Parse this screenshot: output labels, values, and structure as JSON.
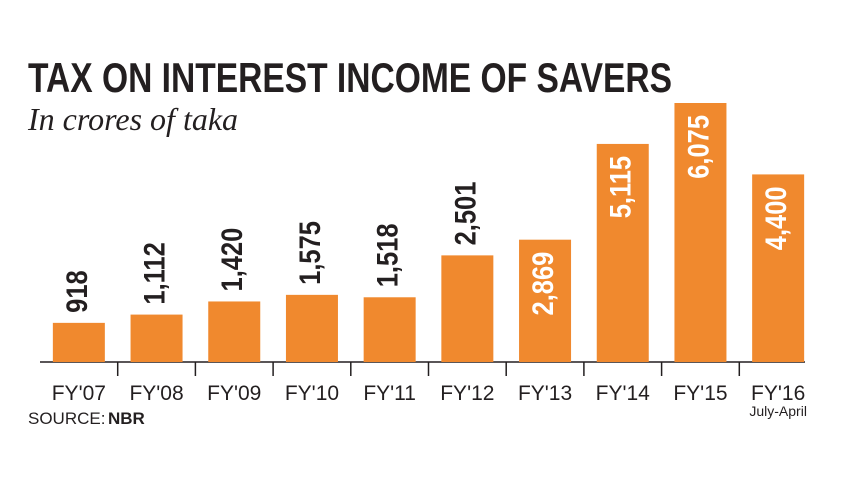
{
  "chart_data": {
    "type": "bar",
    "title": "TAX  ON INTEREST INCOME OF SAVERS",
    "subtitle": "In crores of taka",
    "categories": [
      "FY'07",
      "FY'08",
      "FY'09",
      "FY'10",
      "FY'11",
      "FY'12",
      "FY'13",
      "FY'14",
      "FY'15",
      "FY'16"
    ],
    "values": [
      918,
      1112,
      1420,
      1575,
      1518,
      2501,
      2869,
      5115,
      6075,
      4400
    ],
    "value_labels": [
      "918",
      "1,112",
      "1,420",
      "1,575",
      "1,518",
      "2,501",
      "2,869",
      "5,115",
      "6,075",
      "4,400"
    ],
    "annotations": [
      "July-April"
    ],
    "source_label": "SOURCE:",
    "source": "NBR",
    "color": "#f0892e"
  }
}
